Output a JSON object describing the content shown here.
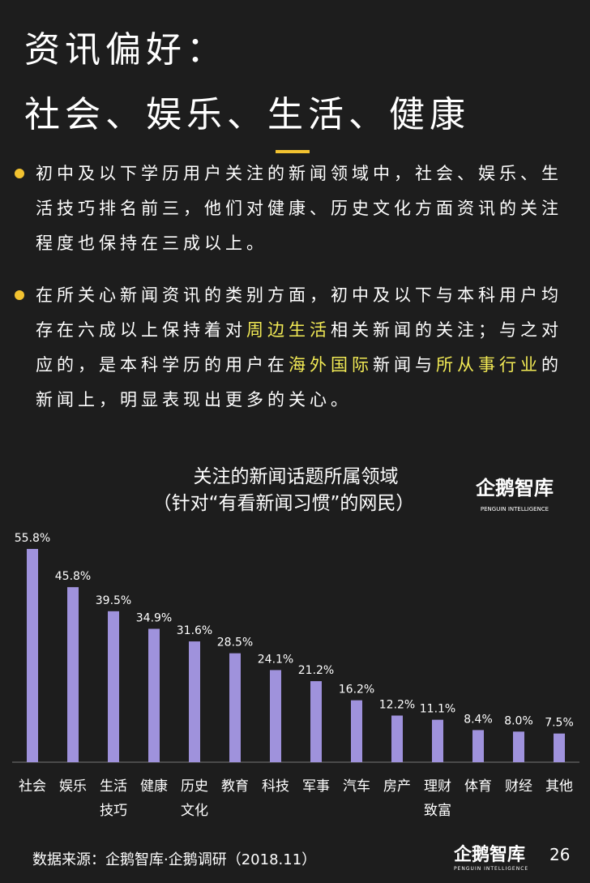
{
  "header": {
    "title_lines": [
      "资讯偏好：",
      "社会、娱乐、生活、健康"
    ]
  },
  "bullets": [
    {
      "segments": [
        {
          "text": "初中及以下学历用户关注的新闻领域中，社会、娱乐、生活技巧排名前三，他们对健康、历史文化方面资讯的关注程度也保持在三成以上。",
          "color": "#ffffff"
        }
      ]
    },
    {
      "segments": [
        {
          "text": "在所关心新闻资讯的类别方面，初中及以下与本科用户均存在六成以上保持着对",
          "color": "#ffffff"
        },
        {
          "text": "周边生活",
          "color": "#f2ea55"
        },
        {
          "text": "相关新闻的关注；与之对应的，是本科学历的用户在",
          "color": "#ffffff"
        },
        {
          "text": "海外国际",
          "color": "#f2ea55"
        },
        {
          "text": "新闻与",
          "color": "#ffffff"
        },
        {
          "text": "所从事行业",
          "color": "#f2ea55"
        },
        {
          "text": "的新闻上，明显表现出更多的关心。",
          "color": "#ffffff"
        }
      ]
    }
  ],
  "chart_data": {
    "type": "bar",
    "title": "关注的新闻话题所属领域",
    "subtitle": "（针对“有看新闻习惯”的网民）",
    "categories": [
      "社会",
      "娱乐",
      "生活技巧",
      "健康",
      "历史文化",
      "教育",
      "科技",
      "军事",
      "汽车",
      "房产",
      "理财致富",
      "体育",
      "财经",
      "其他"
    ],
    "values": [
      55.8,
      45.8,
      39.5,
      34.9,
      31.6,
      28.5,
      24.1,
      21.2,
      16.2,
      12.2,
      11.1,
      8.4,
      8.0,
      7.5
    ],
    "value_labels": [
      "55.8%",
      "45.8%",
      "39.5%",
      "34.9%",
      "31.6%",
      "28.5%",
      "24.1%",
      "21.2%",
      "16.2%",
      "12.2%",
      "11.1%",
      "8.4%",
      "8.0%",
      "7.5%"
    ],
    "color": "#9f92dc"
  },
  "logo": {
    "name": "企鹅智库",
    "tagline": "PENGUIN INTELLIGENCE"
  },
  "footer": {
    "source": "数据来源：企鹅智库·企鹅调研（2018.11）",
    "page": "26"
  }
}
